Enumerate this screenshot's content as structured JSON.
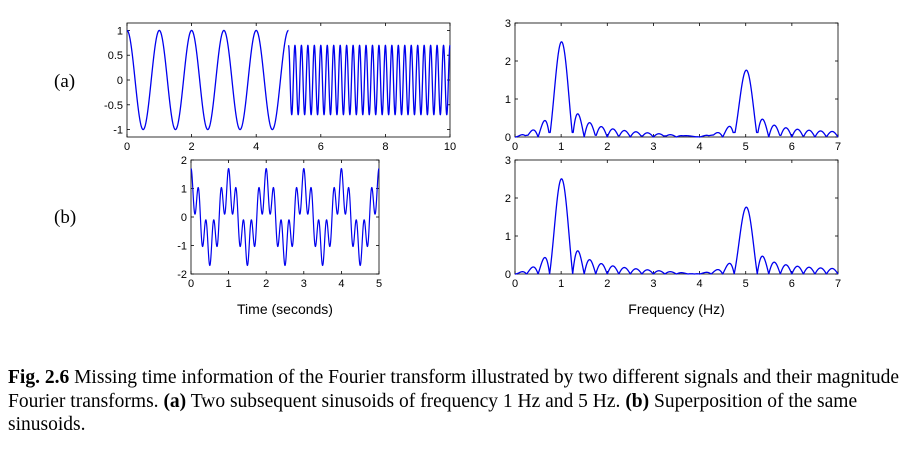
{
  "panel_labels": {
    "a": "(a)",
    "b": "(b)"
  },
  "caption": {
    "fig_label": "Fig. 2.6",
    "line1_text": " Missing time information of the Fourier transform illustrated by two different signals and their magnitude Fourier transforms. ",
    "a_label": "(a)",
    "a_text": " Two subsequent sinusoids of frequency 1 Hz and 5 Hz. ",
    "b_label": "(b)",
    "b_text": " Superposition of the same sinusoids."
  },
  "colors": {
    "line": "#0000ee",
    "axis": "#000000",
    "background": "#ffffff"
  },
  "chart_data": [
    {
      "id": "a-time",
      "type": "line",
      "title": "",
      "xlabel": "",
      "ylabel": "",
      "xlim": [
        0,
        10
      ],
      "ylim": [
        -1.15,
        1.15
      ],
      "x_ticks": [
        0,
        2,
        4,
        6,
        8,
        10
      ],
      "y_ticks": [
        1,
        0.5,
        0,
        -0.5,
        -1
      ],
      "grid": false,
      "series": [
        {
          "segments": [
            {
              "x_start": 0,
              "x_end": 5,
              "freq_hz": 1,
              "amplitude": 1
            },
            {
              "x_start": 5,
              "x_end": 10,
              "freq_hz": 5,
              "amplitude": 0.7
            }
          ]
        }
      ]
    },
    {
      "id": "a-freq",
      "type": "line",
      "title": "",
      "xlabel": "",
      "ylabel": "",
      "xlim": [
        0,
        7
      ],
      "ylim": [
        0,
        3
      ],
      "x_ticks": [
        0,
        1,
        2,
        3,
        4,
        5,
        6,
        7
      ],
      "y_ticks": [
        0,
        1,
        2,
        3
      ],
      "grid": false,
      "series": [
        {
          "peaks": [
            {
              "x": 1,
              "y": 2.5
            },
            {
              "x": 5,
              "y": 1.75
            }
          ]
        }
      ]
    },
    {
      "id": "b-time",
      "type": "line",
      "title": "",
      "xlabel": "Time (seconds)",
      "ylabel": "",
      "xlim": [
        0,
        5
      ],
      "ylim": [
        -2,
        2
      ],
      "x_ticks": [
        0,
        1,
        2,
        3,
        4,
        5
      ],
      "y_ticks": [
        -2,
        -1,
        0,
        1,
        2
      ],
      "grid": false,
      "series": [
        {
          "components": [
            {
              "freq_hz": 1,
              "amplitude": 1
            },
            {
              "freq_hz": 5,
              "amplitude": 0.7
            }
          ]
        }
      ]
    },
    {
      "id": "b-freq",
      "type": "line",
      "title": "",
      "xlabel": "Frequency (Hz)",
      "ylabel": "",
      "xlim": [
        0,
        7
      ],
      "ylim": [
        0,
        3
      ],
      "x_ticks": [
        0,
        1,
        2,
        3,
        4,
        5,
        6,
        7
      ],
      "y_ticks": [
        0,
        1,
        2,
        3
      ],
      "grid": false,
      "series": [
        {
          "peaks": [
            {
              "x": 1,
              "y": 2.5
            },
            {
              "x": 5,
              "y": 1.75
            }
          ]
        }
      ]
    }
  ]
}
